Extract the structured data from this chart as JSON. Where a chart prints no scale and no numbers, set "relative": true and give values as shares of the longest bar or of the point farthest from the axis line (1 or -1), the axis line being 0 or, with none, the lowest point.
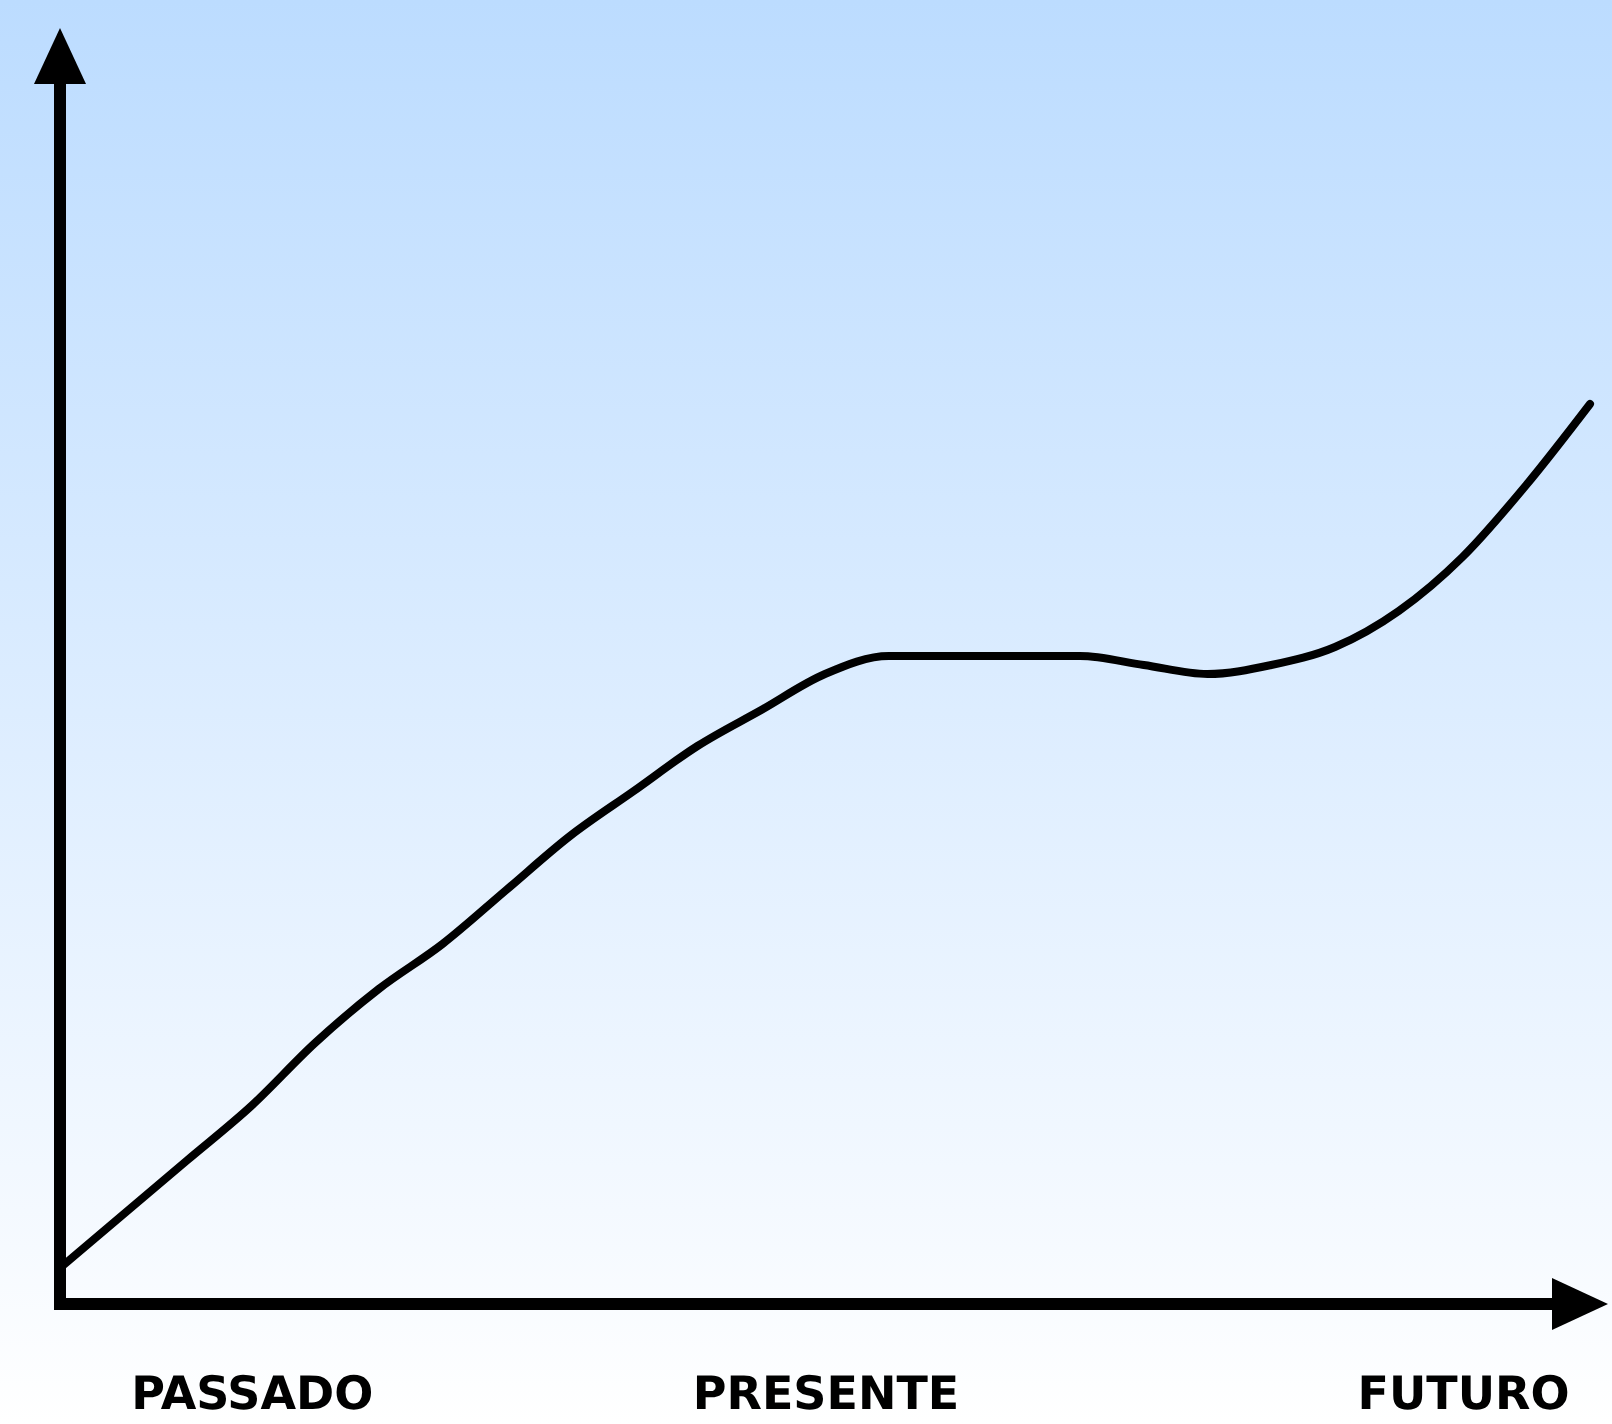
{
  "chart_data": {
    "type": "line",
    "relative": true,
    "tick_labels": "x",
    "categories": [
      null,
      null,
      null,
      "PASSADO",
      null,
      null,
      null,
      null,
      null,
      null,
      null,
      null,
      "PRESENTE",
      null,
      null,
      null,
      null,
      null,
      null,
      null,
      null,
      null,
      "FUTURO",
      null,
      null
    ],
    "series": [
      {
        "color": "#000000",
        "values": [
          0.04,
          0.1,
          0.16,
          0.22,
          0.29,
          0.35,
          0.4,
          0.46,
          0.52,
          0.57,
          0.62,
          0.66,
          0.7,
          0.72,
          0.72,
          0.72,
          0.72,
          0.71,
          0.7,
          0.71,
          0.73,
          0.77,
          0.83,
          0.91,
          1.0
        ]
      }
    ]
  }
}
